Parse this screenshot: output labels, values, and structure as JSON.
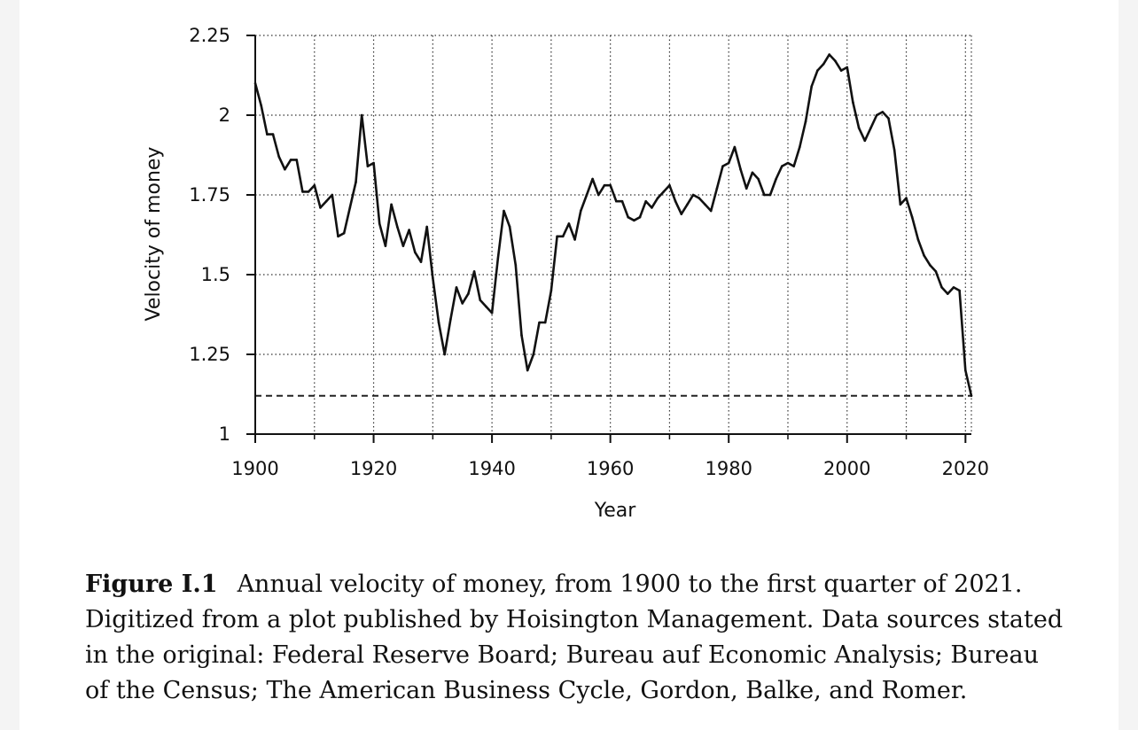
{
  "chart_data": {
    "type": "line",
    "title": "",
    "xlabel": "Year",
    "ylabel": "Velocity of money",
    "xlim": [
      1900,
      2021
    ],
    "ylim": [
      1,
      2.25
    ],
    "x_ticks": [
      1900,
      1920,
      1940,
      1960,
      1980,
      2000,
      2020
    ],
    "x_tick_labels": [
      "1900",
      "1920",
      "1940",
      "1960",
      "1980",
      "2000",
      "2020"
    ],
    "y_ticks": [
      1,
      1.25,
      1.5,
      1.75,
      2,
      2.25
    ],
    "y_tick_labels": [
      "1",
      "1.25",
      "1.5",
      "1.75",
      "2",
      "2.25"
    ],
    "grid": true,
    "reference_line": {
      "y": 1.12,
      "style": "dashed"
    },
    "series": [
      {
        "name": "Velocity of money",
        "color": "#111111",
        "x": [
          1900,
          1901,
          1902,
          1903,
          1904,
          1905,
          1906,
          1907,
          1908,
          1909,
          1910,
          1911,
          1912,
          1913,
          1914,
          1915,
          1916,
          1917,
          1918,
          1919,
          1920,
          1921,
          1922,
          1923,
          1924,
          1925,
          1926,
          1927,
          1928,
          1929,
          1930,
          1931,
          1932,
          1933,
          1934,
          1935,
          1936,
          1937,
          1938,
          1939,
          1940,
          1941,
          1942,
          1943,
          1944,
          1945,
          1946,
          1947,
          1948,
          1949,
          1950,
          1951,
          1952,
          1953,
          1954,
          1955,
          1956,
          1957,
          1958,
          1959,
          1960,
          1961,
          1962,
          1963,
          1964,
          1965,
          1966,
          1967,
          1968,
          1969,
          1970,
          1971,
          1972,
          1973,
          1974,
          1975,
          1976,
          1977,
          1978,
          1979,
          1980,
          1981,
          1982,
          1983,
          1984,
          1985,
          1986,
          1987,
          1988,
          1989,
          1990,
          1991,
          1992,
          1993,
          1994,
          1995,
          1996,
          1997,
          1998,
          1999,
          2000,
          2001,
          2002,
          2003,
          2004,
          2005,
          2006,
          2007,
          2008,
          2009,
          2010,
          2011,
          2012,
          2013,
          2014,
          2015,
          2016,
          2017,
          2018,
          2019,
          2020,
          2021
        ],
        "values": [
          2.1,
          2.03,
          1.94,
          1.94,
          1.87,
          1.83,
          1.86,
          1.86,
          1.76,
          1.76,
          1.78,
          1.71,
          1.73,
          1.75,
          1.62,
          1.63,
          1.71,
          1.79,
          2.0,
          1.84,
          1.85,
          1.66,
          1.59,
          1.72,
          1.65,
          1.59,
          1.64,
          1.57,
          1.54,
          1.65,
          1.49,
          1.35,
          1.25,
          1.36,
          1.46,
          1.41,
          1.44,
          1.51,
          1.42,
          1.4,
          1.38,
          1.55,
          1.7,
          1.65,
          1.53,
          1.31,
          1.2,
          1.25,
          1.35,
          1.35,
          1.45,
          1.62,
          1.62,
          1.66,
          1.61,
          1.7,
          1.75,
          1.8,
          1.75,
          1.78,
          1.78,
          1.73,
          1.73,
          1.68,
          1.67,
          1.68,
          1.73,
          1.71,
          1.74,
          1.76,
          1.78,
          1.73,
          1.69,
          1.72,
          1.75,
          1.74,
          1.72,
          1.7,
          1.77,
          1.84,
          1.85,
          1.9,
          1.83,
          1.77,
          1.82,
          1.8,
          1.75,
          1.75,
          1.8,
          1.84,
          1.85,
          1.84,
          1.9,
          1.98,
          2.09,
          2.14,
          2.16,
          2.19,
          2.17,
          2.14,
          2.15,
          2.04,
          1.96,
          1.92,
          1.96,
          2.0,
          2.01,
          1.99,
          1.89,
          1.72,
          1.74,
          1.68,
          1.61,
          1.56,
          1.53,
          1.51,
          1.46,
          1.44,
          1.46,
          1.45,
          1.2,
          1.12
        ]
      }
    ]
  },
  "caption": {
    "label": "Figure I.1",
    "text": "Annual velocity of money, from 1900 to the first quarter of 2021. Digitized from a plot published by Hoisington Management.  Data sources stated in the original: Federal Reserve Board; Bureau auf Economic Analysis; Bureau of the Census; The American Business Cycle, Gordon, Balke, and Romer."
  }
}
